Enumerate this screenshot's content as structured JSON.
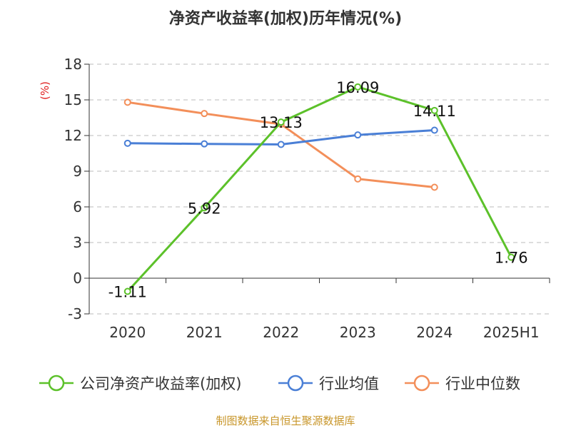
{
  "chart_data": {
    "type": "line",
    "title": "净资产收益率(加权)历年情况(%)",
    "ylabel": "(%)",
    "xlabel": "",
    "categories": [
      "2020",
      "2021",
      "2022",
      "2023",
      "2024",
      "2025H1"
    ],
    "ylim": [
      -3,
      18
    ],
    "yticks": [
      -3,
      0,
      3,
      6,
      9,
      12,
      15,
      18
    ],
    "grid": true,
    "legend_position": "bottom",
    "series": [
      {
        "name": "公司净资产收益率(加权)",
        "color": "#5cc12a",
        "values": [
          -1.11,
          5.92,
          13.13,
          16.09,
          14.11,
          1.76
        ],
        "labels": [
          "-1.11",
          "5.92",
          "13.13",
          "16.09",
          "14.11",
          "1.76"
        ]
      },
      {
        "name": "行业均值",
        "color": "#4a7fd6",
        "values": [
          11.35,
          11.3,
          11.25,
          12.05,
          12.45,
          null
        ]
      },
      {
        "name": "行业中位数",
        "color": "#f38f5a",
        "values": [
          14.8,
          13.85,
          12.95,
          8.35,
          7.65,
          null
        ]
      }
    ]
  },
  "source": "制图数据来自恒生聚源数据库"
}
